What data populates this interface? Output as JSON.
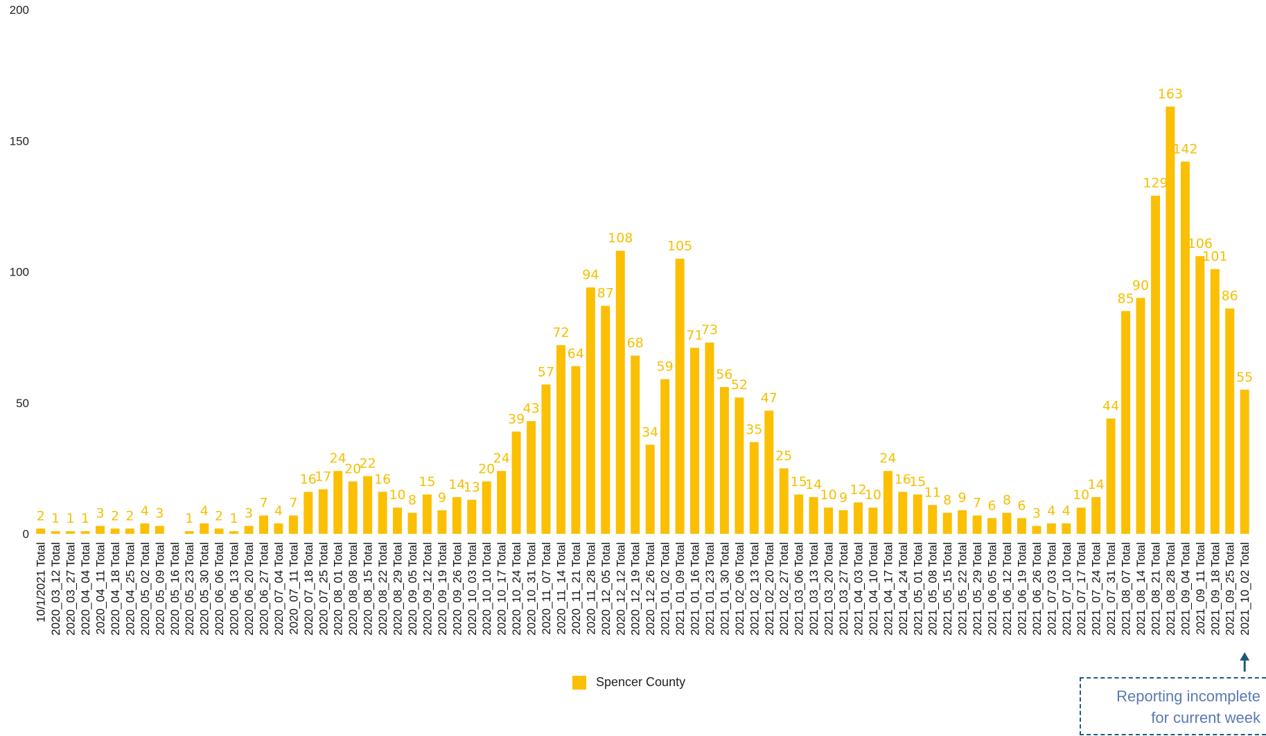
{
  "chart_data": {
    "type": "bar",
    "ylim": [
      0,
      200
    ],
    "yticks": [
      0,
      50,
      100,
      150,
      200
    ],
    "grid": false,
    "legend_position": "bottom",
    "series": [
      {
        "name": "Spencer County",
        "color": "#fbbf04"
      }
    ],
    "categories": [
      "10/1/2021 Total",
      "2020_03_12 Total",
      "2020_03_27 Total",
      "2020_04_04 Total",
      "2020_04_11 Total",
      "2020_04_18 Total",
      "2020_04_25 Total",
      "2020_05_02 Total",
      "2020_05_09 Total",
      "2020_05_16 Total",
      "2020_05_23 Total",
      "2020_05_30 Total",
      "2020_06_06 Total",
      "2020_06_13 Total",
      "2020_06_20 Total",
      "2020_06_27 Total",
      "2020_07_04 Total",
      "2020_07_11 Total",
      "2020_07_18 Total",
      "2020_07_25 Total",
      "2020_08_01 Total",
      "2020_08_08 Total",
      "2020_08_15 Total",
      "2020_08_22 Total",
      "2020_08_29 Total",
      "2020_09_05 Total",
      "2020_09_12 Total",
      "2020_09_19 Total",
      "2020_09_26 Total",
      "2020_10_03 Total",
      "2020_10_10 Total",
      "2020_10_17 Total",
      "2020_10_24 Total",
      "2020_10_31 Total",
      "2020_11_07 Total",
      "2020_11_14 Total",
      "2020_11_21 Total",
      "2020_11_28 Total",
      "2020_12_05 Total",
      "2020_12_12 Total",
      "2020_12_19 Total",
      "2020_12_26 Total",
      "2021_01_02 Total",
      "2021_01_09 Total",
      "2021_01_16 Total",
      "2021_01_23 Total",
      "2021_01_30 Total",
      "2021_02_06 Total",
      "2021_02_13 Total",
      "2021_02_20 Total",
      "2021_02_27 Total",
      "2021_03_06 Total",
      "2021_03_13 Total",
      "2021_03_20 Total",
      "2021_03_27 Total",
      "2021_04_03 Total",
      "2021_04_10 Total",
      "2021_04_17 Total",
      "2021_04_24 Total",
      "2021_05_01 Total",
      "2021_05_08 Total",
      "2021_05_15 Total",
      "2021_05_22 Total",
      "2021_05_29 Total",
      "2021_06_05 Total",
      "2021_06_12 Total",
      "2021_06_19 Total",
      "2021_06_26 Total",
      "2021_07_03 Total",
      "2021_07_10 Total",
      "2021_07_17 Total",
      "2021_07_24 Total",
      "2021_07_31 Total",
      "2021_08_07 Total",
      "2021_08_14 Total",
      "2021_08_21 Total",
      "2021_08_28 Total",
      "2021_09_04 Total",
      "2021_09_11 Total",
      "2021_09_18 Total",
      "2021_09_25 Total",
      "2021_10_02 Total"
    ],
    "values": [
      2,
      1,
      1,
      1,
      3,
      2,
      2,
      4,
      3,
      null,
      1,
      4,
      2,
      1,
      3,
      7,
      4,
      7,
      16,
      17,
      24,
      20,
      22,
      16,
      10,
      8,
      15,
      9,
      14,
      13,
      20,
      24,
      39,
      43,
      57,
      72,
      64,
      94,
      87,
      108,
      68,
      34,
      59,
      105,
      71,
      73,
      56,
      52,
      35,
      47,
      25,
      15,
      14,
      10,
      9,
      12,
      10,
      24,
      16,
      15,
      11,
      8,
      9,
      7,
      6,
      8,
      6,
      3,
      4,
      4,
      10,
      14,
      44,
      85,
      90,
      129,
      163,
      142,
      106,
      101,
      86,
      55
    ]
  },
  "annotation": {
    "line1": "Reporting incomplete",
    "line2": "for current week",
    "color": "#1d5a7a"
  }
}
